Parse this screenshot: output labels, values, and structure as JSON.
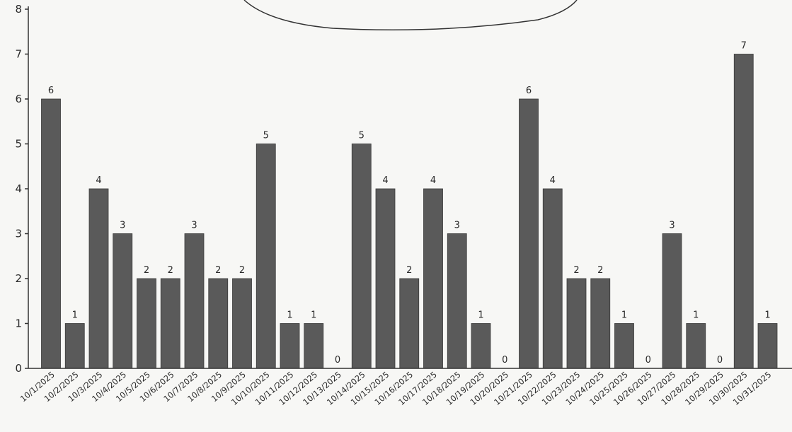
{
  "chart_data": {
    "type": "bar",
    "categories": [
      "10/1/2025",
      "10/2/2025",
      "10/3/2025",
      "10/4/2025",
      "10/5/2025",
      "10/6/2025",
      "10/7/2025",
      "10/8/2025",
      "10/9/2025",
      "10/10/2025",
      "10/11/2025",
      "10/12/2025",
      "10/13/2025",
      "10/14/2025",
      "10/15/2025",
      "10/16/2025",
      "10/17/2025",
      "10/18/2025",
      "10/19/2025",
      "10/20/2025",
      "10/21/2025",
      "10/22/2025",
      "10/23/2025",
      "10/24/2025",
      "10/25/2025",
      "10/26/2025",
      "10/27/2025",
      "10/28/2025",
      "10/29/2025",
      "10/30/2025",
      "10/31/2025"
    ],
    "values": [
      6,
      1,
      4,
      3,
      2,
      2,
      3,
      2,
      2,
      5,
      1,
      1,
      0,
      5,
      4,
      2,
      4,
      3,
      1,
      0,
      6,
      4,
      2,
      2,
      1,
      0,
      3,
      1,
      0,
      7,
      1
    ],
    "data_labels": [
      "6",
      "1",
      "4",
      "3",
      "2",
      "2",
      "3",
      "2",
      "2",
      "5",
      "1",
      "1",
      "0",
      "5",
      "4",
      "2",
      "4",
      "3",
      "1",
      "0",
      "6",
      "4",
      "2",
      "2",
      "1",
      "0",
      "3",
      "1",
      "0",
      "7",
      "1"
    ],
    "yticks": [
      "0",
      "1",
      "2",
      "3",
      "4",
      "5",
      "6",
      "7",
      "8"
    ],
    "ylim": [
      0,
      8
    ],
    "title": "",
    "xlabel": "",
    "ylabel": "",
    "grid": false,
    "bar_color": "#5a5a5a",
    "axis_color": "#333333"
  }
}
